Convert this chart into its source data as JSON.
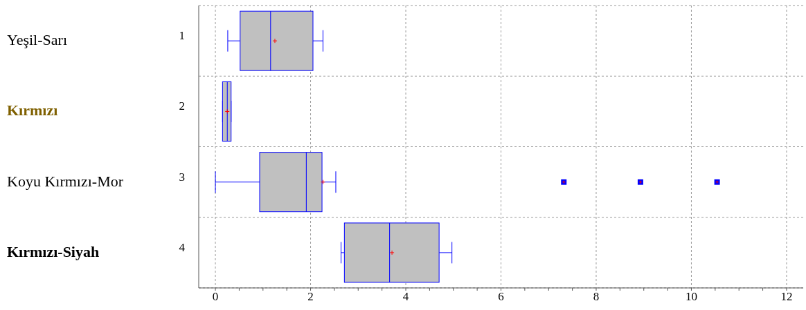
{
  "chart_data": {
    "type": "box",
    "orientation": "horizontal",
    "categories": [
      "1",
      "2",
      "3",
      "4"
    ],
    "color": "#c0c0c0",
    "boxes": [
      {
        "low": 0.26,
        "q1": 0.52,
        "median": 1.16,
        "q3": 2.05,
        "high": 2.26,
        "mean": 1.25
      },
      {
        "low": 0.15,
        "q1": 0.15,
        "median": 0.25,
        "q3": 0.33,
        "high": 0.33,
        "mean": 0.25
      },
      {
        "low": 0,
        "q1": 0.93,
        "median": 1.91,
        "q3": 2.24,
        "high": 2.53,
        "mean": 2.26,
        "outliers": [
          7.32,
          8.93,
          10.54
        ]
      },
      {
        "low": 2.64,
        "q1": 2.71,
        "median": 3.66,
        "q3": 4.7,
        "high": 4.97,
        "mean": 3.71
      }
    ],
    "xlim": [
      -0.35,
      12.35
    ],
    "xticks": [
      0,
      {
        "value": 0.5,
        "label": null
      },
      2,
      {
        "value": 1,
        "label": null
      },
      {
        "value": 1.5,
        "label": null
      },
      {
        "value": 2.5,
        "label": null
      },
      {
        "value": 3,
        "label": null
      },
      {
        "value": 3.5,
        "label": null
      },
      4,
      {
        "value": 4.5,
        "label": null
      },
      {
        "value": 5,
        "label": null
      },
      {
        "value": 5.5,
        "label": null
      },
      6,
      {
        "value": 6.5,
        "label": null
      },
      {
        "value": 7,
        "label": null
      },
      {
        "value": 7.5,
        "label": null
      },
      8,
      {
        "value": 8.5,
        "label": null
      },
      {
        "value": 9,
        "label": null
      },
      {
        "value": 9.5,
        "label": null
      },
      10,
      {
        "value": 10.5,
        "label": null
      },
      {
        "value": 11,
        "label": null
      },
      {
        "value": 11.5,
        "label": null
      },
      12
    ],
    "grid": true,
    "annotations": [
      "Yeşil-Sarı",
      "Kırmızı",
      "Koyu Kırmızı-Mor",
      "Kırmızı-Siyah"
    ]
  }
}
